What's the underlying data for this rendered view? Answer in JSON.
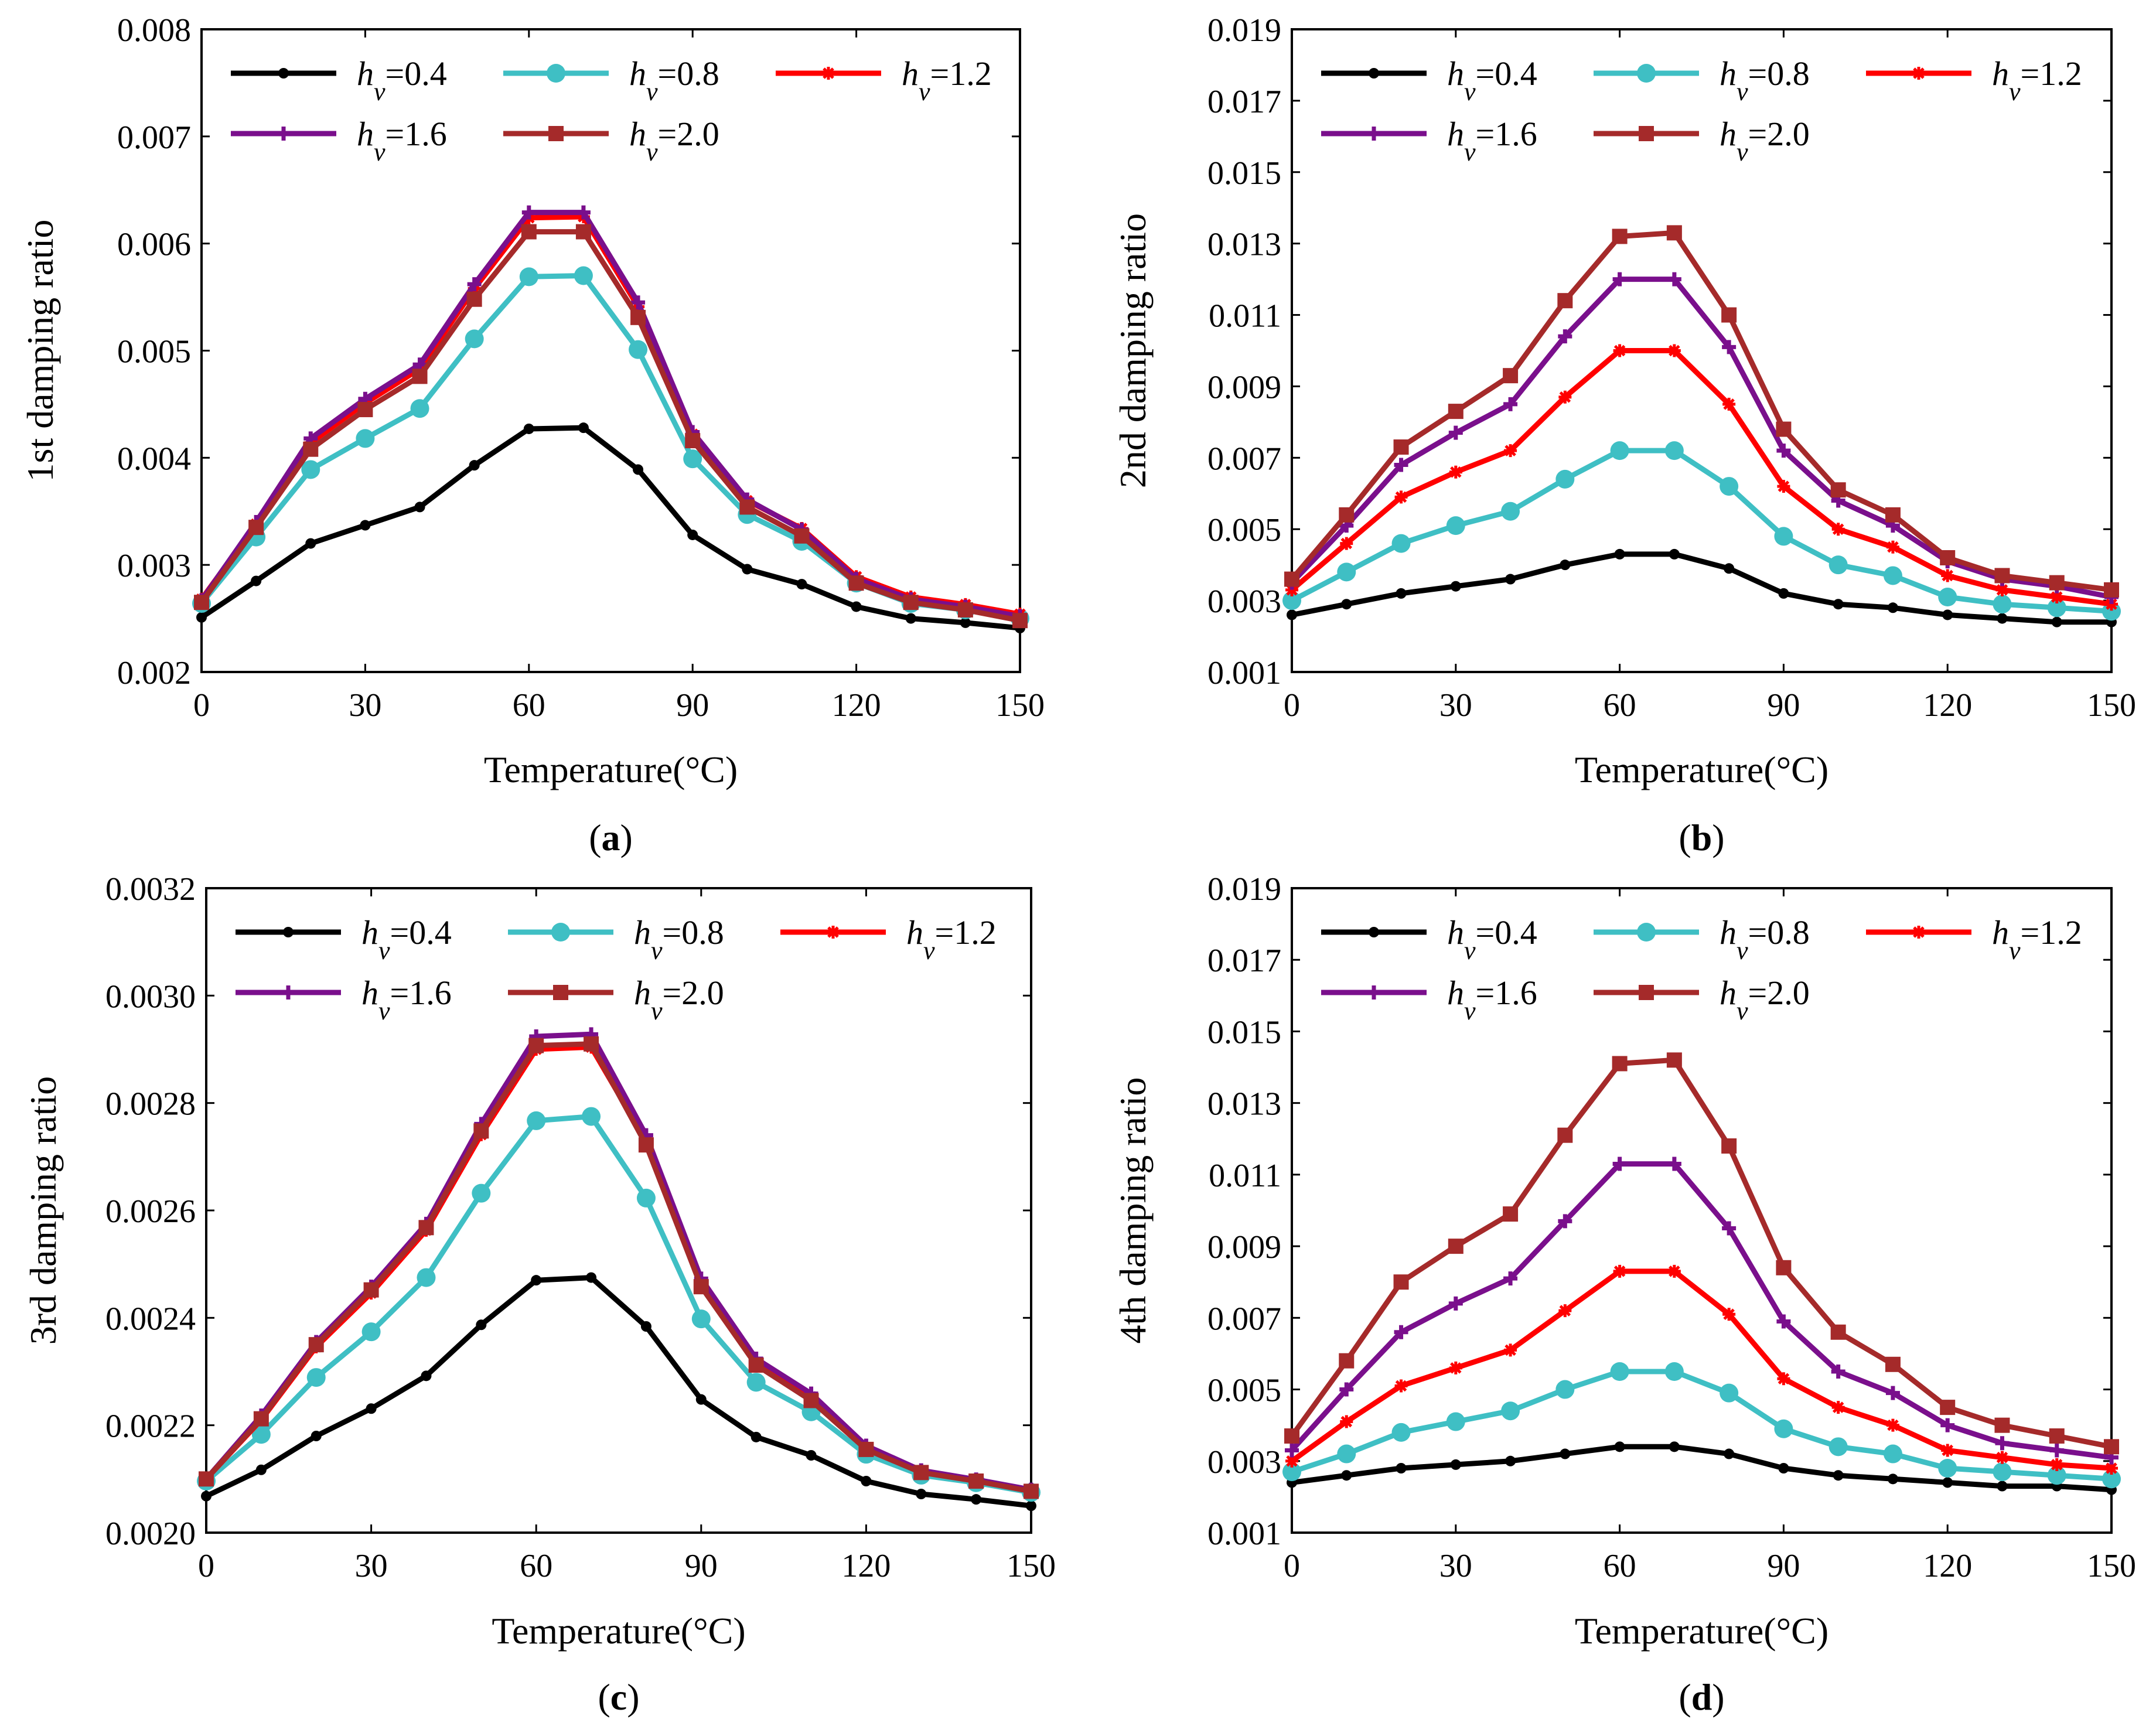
{
  "colors": {
    "hv04": "#000000",
    "hv08": "#3fbfc4",
    "hv12": "#ff0000",
    "hv16": "#7a0f8c",
    "hv20": "#a52a2a"
  },
  "legend": [
    {
      "key": "hv04",
      "sym": "h",
      "sub": "v",
      "text": "=0.4",
      "marker": "dot"
    },
    {
      "key": "hv08",
      "sym": "h",
      "sub": "v",
      "text": "=0.8",
      "marker": "circle"
    },
    {
      "key": "hv12",
      "sym": "h",
      "sub": "v",
      "text": "=1.2",
      "marker": "star"
    },
    {
      "key": "hv16",
      "sym": "h",
      "sub": "v",
      "text": "=1.6",
      "marker": "plus"
    },
    {
      "key": "hv20",
      "sym": "h",
      "sub": "v",
      "text": "=2.0",
      "marker": "square"
    }
  ],
  "chart_data": [
    {
      "type": "line",
      "panel": "a",
      "panel_label": "a",
      "xlabel": "Temperature(°C)",
      "ylabel": "1st damping ratio",
      "xlim": [
        0,
        150
      ],
      "ylim": [
        0.002,
        0.008
      ],
      "xticks": [
        "0",
        "30",
        "60",
        "90",
        "120",
        "150"
      ],
      "yticks": [
        "0.002",
        "0.003",
        "0.004",
        "0.005",
        "0.006",
        "0.007",
        "0.008"
      ],
      "x": [
        0,
        10,
        20,
        30,
        40,
        50,
        60,
        70,
        80,
        90,
        100,
        110,
        120,
        130,
        140,
        150
      ],
      "series": [
        {
          "key": "hv04",
          "name": "hv=0.4",
          "values": [
            0.00251,
            0.00285,
            0.0032,
            0.00337,
            0.00354,
            0.00393,
            0.00427,
            0.00428,
            0.00389,
            0.00328,
            0.00296,
            0.00282,
            0.00261,
            0.0025,
            0.00246,
            0.00241
          ]
        },
        {
          "key": "hv08",
          "name": "hv=0.8",
          "values": [
            0.00264,
            0.00326,
            0.00389,
            0.00418,
            0.00446,
            0.00511,
            0.00569,
            0.0057,
            0.00501,
            0.00399,
            0.00347,
            0.00322,
            0.00283,
            0.00264,
            0.00258,
            0.0025
          ]
        },
        {
          "key": "hv12",
          "name": "hv=1.2",
          "values": [
            0.00268,
            0.00338,
            0.00414,
            0.00451,
            0.00483,
            0.00558,
            0.00624,
            0.00625,
            0.00541,
            0.00422,
            0.0036,
            0.00334,
            0.00289,
            0.0027,
            0.00263,
            0.00254
          ]
        },
        {
          "key": "hv16",
          "name": "hv=1.6",
          "values": [
            0.00267,
            0.0034,
            0.00418,
            0.00455,
            0.00487,
            0.00562,
            0.00629,
            0.00629,
            0.00545,
            0.00424,
            0.00361,
            0.00333,
            0.00287,
            0.00268,
            0.00261,
            0.00252
          ]
        },
        {
          "key": "hv20",
          "name": "hv=2.0",
          "values": [
            0.00265,
            0.00335,
            0.00408,
            0.00445,
            0.00476,
            0.00548,
            0.00611,
            0.00611,
            0.00531,
            0.00416,
            0.00354,
            0.00327,
            0.00283,
            0.00265,
            0.00258,
            0.00248
          ]
        }
      ]
    },
    {
      "type": "line",
      "panel": "b",
      "panel_label": "b",
      "xlabel": "Temperature(°C)",
      "ylabel": "2nd damping ratio",
      "xlim": [
        0,
        150
      ],
      "ylim": [
        0.001,
        0.019
      ],
      "xticks": [
        "0",
        "30",
        "60",
        "90",
        "120",
        "150"
      ],
      "yticks": [
        "0.001",
        "0.003",
        "0.005",
        "0.007",
        "0.009",
        "0.011",
        "0.013",
        "0.015",
        "0.017",
        "0.019"
      ],
      "x": [
        0,
        10,
        20,
        30,
        40,
        50,
        60,
        70,
        80,
        90,
        100,
        110,
        120,
        130,
        140,
        150
      ],
      "series": [
        {
          "key": "hv04",
          "name": "hv=0.4",
          "values": [
            0.0026,
            0.0029,
            0.0032,
            0.0034,
            0.0036,
            0.004,
            0.0043,
            0.0043,
            0.0039,
            0.0032,
            0.0029,
            0.0028,
            0.0026,
            0.0025,
            0.0024,
            0.0024
          ]
        },
        {
          "key": "hv08",
          "name": "hv=0.8",
          "values": [
            0.003,
            0.0038,
            0.0046,
            0.0051,
            0.0055,
            0.0064,
            0.0072,
            0.0072,
            0.0062,
            0.0048,
            0.004,
            0.0037,
            0.0031,
            0.0029,
            0.0028,
            0.0027
          ]
        },
        {
          "key": "hv12",
          "name": "hv=1.2",
          "values": [
            0.0033,
            0.0046,
            0.0059,
            0.0066,
            0.0072,
            0.0087,
            0.01,
            0.01,
            0.0085,
            0.0062,
            0.005,
            0.0045,
            0.0037,
            0.0033,
            0.0031,
            0.0029
          ]
        },
        {
          "key": "hv16",
          "name": "hv=1.6",
          "values": [
            0.0035,
            0.0051,
            0.0068,
            0.0077,
            0.0085,
            0.0104,
            0.012,
            0.012,
            0.0101,
            0.0072,
            0.0058,
            0.0051,
            0.0041,
            0.0036,
            0.0034,
            0.0031
          ]
        },
        {
          "key": "hv20",
          "name": "hv=2.0",
          "values": [
            0.0036,
            0.0054,
            0.0073,
            0.0083,
            0.0093,
            0.0114,
            0.0132,
            0.0133,
            0.011,
            0.0078,
            0.0061,
            0.0054,
            0.0042,
            0.0037,
            0.0035,
            0.0033
          ]
        }
      ]
    },
    {
      "type": "line",
      "panel": "c",
      "panel_label": "c",
      "xlabel": "Temperature(°C)",
      "ylabel": "3rd damping ratio",
      "xlim": [
        0,
        150
      ],
      "ylim": [
        0.002,
        0.0032
      ],
      "xticks": [
        "0",
        "30",
        "60",
        "90",
        "120",
        "150"
      ],
      "yticks": [
        "0.0020",
        "0.0022",
        "0.0024",
        "0.0026",
        "0.0028",
        "0.0030",
        "0.0032"
      ],
      "x": [
        0,
        10,
        20,
        30,
        40,
        50,
        60,
        70,
        80,
        90,
        100,
        110,
        120,
        130,
        140,
        150
      ],
      "series": [
        {
          "key": "hv04",
          "name": "hv=0.4",
          "values": [
            0.002068,
            0.002117,
            0.00218,
            0.002231,
            0.002292,
            0.002387,
            0.00247,
            0.002475,
            0.002384,
            0.002248,
            0.002178,
            0.002144,
            0.002096,
            0.002072,
            0.002062,
            0.00205
          ]
        },
        {
          "key": "hv08",
          "name": "hv=0.8",
          "values": [
            0.002096,
            0.002183,
            0.002289,
            0.002374,
            0.002475,
            0.002632,
            0.002767,
            0.002775,
            0.002623,
            0.002398,
            0.00228,
            0.002225,
            0.002146,
            0.002107,
            0.002093,
            0.002075
          ]
        },
        {
          "key": "hv12",
          "name": "hv=1.2",
          "values": [
            0.0021,
            0.00221,
            0.002346,
            0.002446,
            0.002563,
            0.002741,
            0.0029,
            0.002904,
            0.002729,
            0.00246,
            0.002316,
            0.002253,
            0.002158,
            0.002114,
            0.002098,
            0.00208
          ]
        },
        {
          "key": "hv16",
          "name": "hv=1.6",
          "values": [
            0.0021,
            0.002218,
            0.002355,
            0.002458,
            0.002575,
            0.002761,
            0.002924,
            0.002928,
            0.00274,
            0.002473,
            0.002324,
            0.002259,
            0.002162,
            0.002116,
            0.002099,
            0.00208
          ]
        },
        {
          "key": "hv20",
          "name": "hv=2.0",
          "values": [
            0.0021,
            0.002212,
            0.00235,
            0.002452,
            0.002568,
            0.002748,
            0.002907,
            0.00291,
            0.002722,
            0.002458,
            0.002312,
            0.002246,
            0.002155,
            0.002112,
            0.002096,
            0.002077
          ]
        }
      ]
    },
    {
      "type": "line",
      "panel": "d",
      "panel_label": "d",
      "xlabel": "Temperature(°C)",
      "ylabel": "4th damping ratio",
      "xlim": [
        0,
        150
      ],
      "ylim": [
        0.001,
        0.019
      ],
      "xticks": [
        "0",
        "30",
        "60",
        "90",
        "120",
        "150"
      ],
      "yticks": [
        "0.001",
        "0.003",
        "0.005",
        "0.007",
        "0.009",
        "0.011",
        "0.013",
        "0.015",
        "0.017",
        "0.019"
      ],
      "x": [
        0,
        10,
        20,
        30,
        40,
        50,
        60,
        70,
        80,
        90,
        100,
        110,
        120,
        130,
        140,
        150
      ],
      "series": [
        {
          "key": "hv04",
          "name": "hv=0.4",
          "values": [
            0.0024,
            0.0026,
            0.0028,
            0.0029,
            0.003,
            0.0032,
            0.0034,
            0.0034,
            0.0032,
            0.0028,
            0.0026,
            0.0025,
            0.0024,
            0.0023,
            0.0023,
            0.0022
          ]
        },
        {
          "key": "hv08",
          "name": "hv=0.8",
          "values": [
            0.0027,
            0.0032,
            0.0038,
            0.0041,
            0.0044,
            0.005,
            0.0055,
            0.0055,
            0.0049,
            0.0039,
            0.0034,
            0.0032,
            0.0028,
            0.0027,
            0.0026,
            0.0025
          ]
        },
        {
          "key": "hv12",
          "name": "hv=1.2",
          "values": [
            0.003,
            0.0041,
            0.0051,
            0.0056,
            0.0061,
            0.0072,
            0.0083,
            0.0083,
            0.0071,
            0.0053,
            0.0045,
            0.004,
            0.0033,
            0.0031,
            0.0029,
            0.0028
          ]
        },
        {
          "key": "hv16",
          "name": "hv=1.6",
          "values": [
            0.0033,
            0.005,
            0.0066,
            0.0074,
            0.0081,
            0.0097,
            0.0113,
            0.0113,
            0.0095,
            0.0069,
            0.0055,
            0.0049,
            0.004,
            0.0035,
            0.0033,
            0.0031
          ]
        },
        {
          "key": "hv20",
          "name": "hv=2.0",
          "values": [
            0.0037,
            0.0058,
            0.008,
            0.009,
            0.0099,
            0.0121,
            0.0141,
            0.0142,
            0.0118,
            0.0084,
            0.0066,
            0.0057,
            0.0045,
            0.004,
            0.0037,
            0.0034
          ]
        }
      ]
    }
  ]
}
